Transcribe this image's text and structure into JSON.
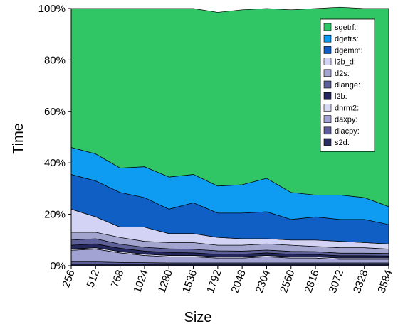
{
  "chart_data": {
    "type": "area",
    "stacked": true,
    "normalized": true,
    "xlabel": "Size",
    "ylabel": "Time",
    "x": [
      "256",
      "512",
      "768",
      "1024",
      "1280",
      "1536",
      "1792",
      "2048",
      "2304",
      "2560",
      "2816",
      "3072",
      "3328",
      "3584"
    ],
    "y_ticks": [
      "0%",
      "20%",
      "40%",
      "60%",
      "80%",
      "100%"
    ],
    "ylim": [
      0,
      100
    ],
    "grid": false,
    "legend_position": "top-right",
    "series": [
      {
        "name": "s2d:",
        "color": "#2a2e5e",
        "values": [
          0.5,
          0.5,
          0.5,
          0.5,
          0.5,
          0.5,
          0.5,
          0.5,
          0.5,
          0.5,
          0.5,
          0.5,
          0.5,
          0.5
        ]
      },
      {
        "name": "dlacpy:",
        "color": "#5c5d99",
        "values": [
          1.0,
          1.0,
          0.8,
          0.7,
          0.6,
          0.6,
          0.6,
          0.6,
          0.6,
          0.6,
          0.6,
          0.6,
          0.6,
          0.6
        ]
      },
      {
        "name": "daxpy:",
        "color": "#a2a3d3",
        "values": [
          4.5,
          5.0,
          3.7,
          2.8,
          2.4,
          2.4,
          1.9,
          1.9,
          2.4,
          1.9,
          1.9,
          1.4,
          1.4,
          1.4
        ]
      },
      {
        "name": "dnrm2:",
        "color": "#d7d8f2",
        "values": [
          0.5,
          0.5,
          0.5,
          0.5,
          0.5,
          0.5,
          0.5,
          0.5,
          0.5,
          0.5,
          0.5,
          0.5,
          0.5,
          0.5
        ]
      },
      {
        "name": "l2b:",
        "color": "#23265a",
        "values": [
          1.5,
          1.5,
          1.3,
          1.2,
          1.2,
          1.0,
          1.0,
          1.0,
          1.0,
          1.0,
          0.9,
          0.9,
          0.9,
          0.8
        ]
      },
      {
        "name": "dlange:",
        "color": "#5d6096",
        "values": [
          2.0,
          2.0,
          1.6,
          1.5,
          1.4,
          1.4,
          1.3,
          1.2,
          1.1,
          1.1,
          1.1,
          1.0,
          1.0,
          1.0
        ]
      },
      {
        "name": "d2s:",
        "color": "#a3a5cf",
        "values": [
          3.0,
          2.5,
          2.6,
          2.3,
          2.4,
          2.6,
          2.2,
          2.3,
          2.4,
          2.4,
          2.0,
          2.1,
          2.1,
          1.7
        ]
      },
      {
        "name": "l2b_d:",
        "color": "#d3d4f5",
        "values": [
          9.0,
          6.0,
          4.0,
          5.5,
          3.5,
          3.5,
          3.0,
          2.5,
          2.0,
          2.0,
          2.5,
          2.5,
          2.0,
          2.0
        ]
      },
      {
        "name": "dgemm:",
        "color": "#0f5fc4",
        "values": [
          13.5,
          14.0,
          13.5,
          11.5,
          9.5,
          12.0,
          9.5,
          10.0,
          10.5,
          8.0,
          9.0,
          8.5,
          9.0,
          7.5
        ]
      },
      {
        "name": "dgetrs:",
        "color": "#0d9cf2",
        "values": [
          10.5,
          10.5,
          9.5,
          12.0,
          12.5,
          11.0,
          10.5,
          11.0,
          13.0,
          10.5,
          8.5,
          9.5,
          8.5,
          7.0
        ]
      },
      {
        "name": "sgetrf:",
        "color": "#30c565",
        "values": [
          54.0,
          56.5,
          62.0,
          61.5,
          65.5,
          64.5,
          67.5,
          68.0,
          66.0,
          71.0,
          72.5,
          73.0,
          73.5,
          77.0
        ]
      }
    ]
  }
}
